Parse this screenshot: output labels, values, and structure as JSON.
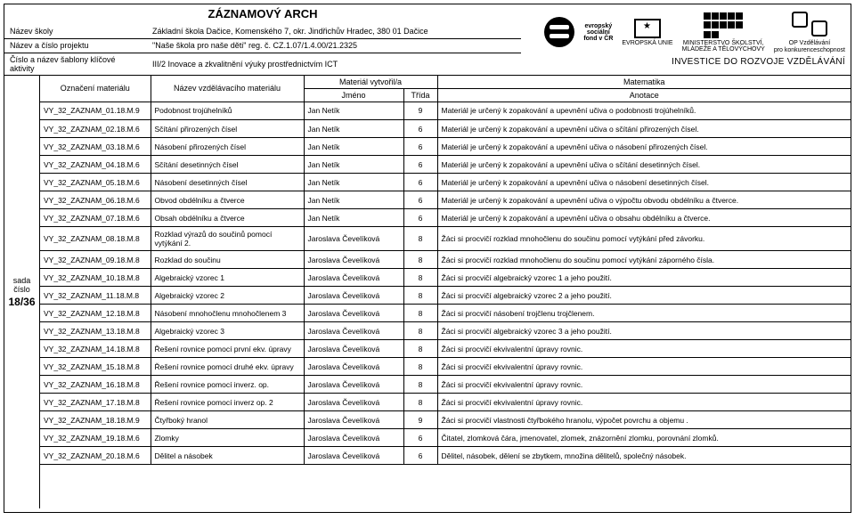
{
  "title": "ZÁZNAMOVÝ ARCH",
  "meta": {
    "labels": {
      "school": "Název školy",
      "project": "Název a číslo projektu",
      "template": "Číslo a název šablony klíčové aktivity"
    },
    "values": {
      "school": "Základní škola Dačice, Komenského 7, okr. Jindřichův Hradec, 380 01 Dačice",
      "project": "\"Naše škola pro naše děti\" reg. č. CZ.1.07/1.4.00/21.2325",
      "template": "III/2 Inovace a zkvalitnění výuky prostřednictvím ICT"
    }
  },
  "logo_text": {
    "esf1": "evropský",
    "esf2": "sociální",
    "esf3": "fond v ČR",
    "eu": "EVROPSKÁ UNIE",
    "msmt1": "MINISTERSTVO ŠKOLSTVÍ,",
    "msmt2": "MLÁDEŽE A TĚLOVÝCHOVY",
    "opvk1": "OP Vzdělávání",
    "opvk2": "pro konkurenceschopnost",
    "invest": "INVESTICE DO ROZVOJE VZDĚLÁVÁNÍ"
  },
  "gutter": {
    "label": "sada číslo",
    "page": "18/36"
  },
  "head2": {
    "a": "Označení materiálu",
    "b": "Název vzdělávacího materiálu",
    "c_top": "Materiál vytvořil/a",
    "c1": "Jméno",
    "c2": "Třída",
    "e_top": "Matematika",
    "e": "Anotace"
  },
  "col_widths": {
    "a": 124,
    "b": 172,
    "c": 112,
    "d": 38
  },
  "rows": [
    {
      "a": "VY_32_ZAZNAM_01.18.M.9",
      "b": "Podobnost trojúhelníků",
      "c": "Jan Netík",
      "d": "9",
      "e": "Materiál je určený k zopakování a upevnění učiva o podobnosti trojúhelníků."
    },
    {
      "a": "VY_32_ZAZNAM_02.18.M.6",
      "b": "Sčítání přirozených čísel",
      "c": "Jan Netík",
      "d": "6",
      "e": "Materiál je určený k zopakování a upevnění učiva o sčítání přirozených čísel."
    },
    {
      "a": "VY_32_ZAZNAM_03.18.M.6",
      "b": "Násobení přirozených čísel",
      "c": "Jan Netík",
      "d": "6",
      "e": "Materiál je určený k zopakování a upevnění učiva o násobení přirozených čísel."
    },
    {
      "a": "VY_32_ZAZNAM_04.18.M.6",
      "b": "Sčítání desetinných čísel",
      "c": "Jan Netík",
      "d": "6",
      "e": "Materiál je určený k zopakování a upevnění učiva o sčítání desetinných čísel."
    },
    {
      "a": "VY_32_ZAZNAM_05.18.M.6",
      "b": "Násobení desetinných čísel",
      "c": "Jan Netík",
      "d": "6",
      "e": "Materiál je určený k zopakování a upevnění učiva o násobení desetinných čísel."
    },
    {
      "a": "VY_32_ZAZNAM_06.18.M.6",
      "b": "Obvod obdélníku a čtverce",
      "c": "Jan Netík",
      "d": "6",
      "e": "Materiál je určený k zopakování a upevnění učiva o výpočtu obvodu obdélníku a čtverce."
    },
    {
      "a": "VY_32_ZAZNAM_07.18.M.6",
      "b": "Obsah obdélníku a čtverce",
      "c": "Jan Netík",
      "d": "6",
      "e": "Materiál je určený k zopakování a upevnění učiva o obsahu  obdélníku a čtverce."
    },
    {
      "a": "VY_32_ZAZNAM_08.18.M.8",
      "b": "Rozklad výrazů do součinů pomocí vytýkání 2.",
      "c": "Jaroslava Čevelíková",
      "d": "8",
      "e": "Žáci si procvičí rozklad mnohočlenu do součinu pomocí vytýkání před závorku."
    },
    {
      "a": "VY_32_ZAZNAM_09.18.M.8",
      "b": "Rozklad do součinu",
      "c": "Jaroslava Čevelíková",
      "d": "8",
      "e": "Žáci si procvičí rozklad mnohočlenu do součinu pomocí vytýkání záporného čísla."
    },
    {
      "a": "VY_32_ZAZNAM_10.18.M.8",
      "b": "Algebraický vzorec 1",
      "c": "Jaroslava Čevelíková",
      "d": "8",
      "e": "Žáci si procvičí algebraický vzorec 1 a jeho použití."
    },
    {
      "a": "VY_32_ZAZNAM_11.18.M.8",
      "b": "Algebraický vzorec 2",
      "c": "Jaroslava Čevelíková",
      "d": "8",
      "e": "Žáci si procvičí algebraický vzorec 2 a jeho použití."
    },
    {
      "a": "VY_32_ZAZNAM_12.18.M.8",
      "b": "Násobení mnohočlenu mnohočlenem 3",
      "c": "Jaroslava Čevelíková",
      "d": "8",
      "e": "Žáci si procvičí násobení trojčlenu trojčlenem."
    },
    {
      "a": "VY_32_ZAZNAM_13.18.M.8",
      "b": "Algebraický vzorec 3",
      "c": "Jaroslava Čevelíková",
      "d": "8",
      "e": "Žáci si procvičí algebraický vzorec 3 a jeho použití."
    },
    {
      "a": "VY_32_ZAZNAM_14.18.M.8",
      "b": "Řešení rovnice pomocí první ekv. úpravy",
      "c": "Jaroslava Čevelíková",
      "d": "8",
      "e": "Žáci si procvičí ekvivalentní úpravy rovnic."
    },
    {
      "a": "VY_32_ZAZNAM_15.18.M.8",
      "b": "Řešení rovnice pomocí druhé ekv. úpravy",
      "c": "Jaroslava Čevelíková",
      "d": "8",
      "e": "Žáci si procvičí ekvivalentní úpravy rovnic."
    },
    {
      "a": "VY_32_ZAZNAM_16.18.M.8",
      "b": "Řešení rovnice pomocí inverz. op.",
      "c": "Jaroslava Čevelíková",
      "d": "8",
      "e": "Žáci si procvičí ekvivalentní úpravy rovnic."
    },
    {
      "a": "VY_32_ZAZNAM_17.18.M.8",
      "b": "Řešení rovnice pomocí inverz op. 2",
      "c": "Jaroslava Čevelíková",
      "d": "8",
      "e": "Žáci si procvičí ekvivalentní úpravy rovnic."
    },
    {
      "a": "VY_32_ZAZNAM_18.18.M.9",
      "b": "Čtyřboký hranol",
      "c": "Jaroslava Čevelíková",
      "d": "9",
      "e": "Žáci si procvičí vlastnosti čtyřbokého hranolu, výpočet povrchu a objemu ."
    },
    {
      "a": "VY_32_ZAZNAM_19.18.M.6",
      "b": "Zlomky",
      "c": "Jaroslava Čevelíková",
      "d": "6",
      "e": "Čitatel, zlomková čára, jmenovatel, zlomek, znázornění zlomku, porovnání zlomků."
    },
    {
      "a": "VY_32_ZAZNAM_20.18.M.6",
      "b": "Dělitel a násobek",
      "c": "Jaroslava Čevelíková",
      "d": "6",
      "e": "Dělitel, násobek, dělení se zbytkem, množina dělitelů, společný násobek."
    }
  ]
}
